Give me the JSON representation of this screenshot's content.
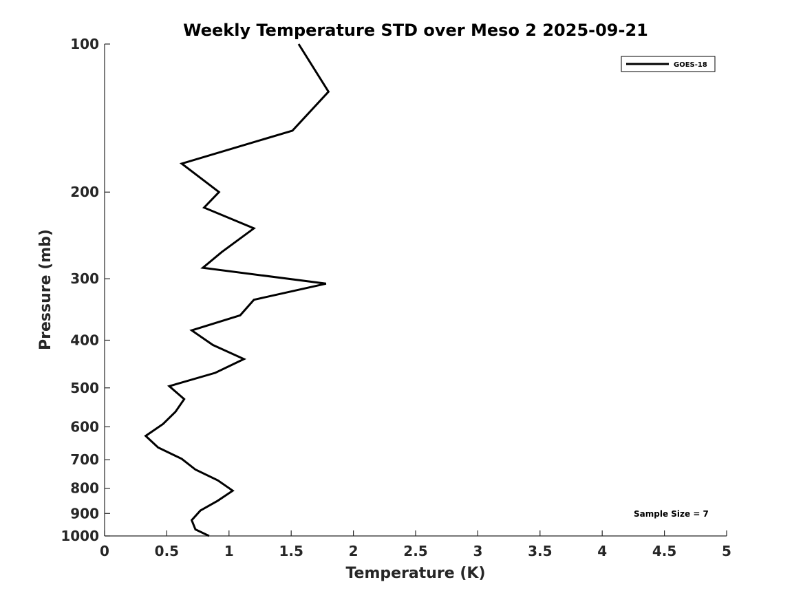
{
  "chart_data": {
    "type": "line",
    "title": "Weekly Temperature STD over Meso 2 2025-09-21",
    "xlabel": "Temperature (K)",
    "ylabel": "Pressure (mb)",
    "xlim": [
      0,
      5
    ],
    "ylim": [
      100,
      1000
    ],
    "y_scale": "log",
    "y_reversed": true,
    "x_ticks": [
      "0",
      "0.5",
      "1",
      "1.5",
      "2",
      "2.5",
      "3",
      "3.5",
      "4",
      "4.5",
      "5"
    ],
    "y_ticks": [
      "100",
      "200",
      "300",
      "400",
      "500",
      "600",
      "700",
      "800",
      "900",
      "1000"
    ],
    "grid": false,
    "legend_position": "top-right",
    "line_color": "#000000",
    "series": [
      {
        "name": "GOES-18",
        "points": [
          {
            "x": 1.56,
            "p": 100
          },
          {
            "x": 1.8,
            "p": 125
          },
          {
            "x": 1.51,
            "p": 150
          },
          {
            "x": 0.62,
            "p": 175
          },
          {
            "x": 0.92,
            "p": 200
          },
          {
            "x": 0.8,
            "p": 215
          },
          {
            "x": 1.2,
            "p": 237
          },
          {
            "x": 0.94,
            "p": 265
          },
          {
            "x": 0.79,
            "p": 285
          },
          {
            "x": 1.78,
            "p": 307
          },
          {
            "x": 1.2,
            "p": 331
          },
          {
            "x": 1.09,
            "p": 356
          },
          {
            "x": 0.7,
            "p": 382
          },
          {
            "x": 0.87,
            "p": 409
          },
          {
            "x": 1.12,
            "p": 437
          },
          {
            "x": 0.89,
            "p": 466
          },
          {
            "x": 0.52,
            "p": 496
          },
          {
            "x": 0.64,
            "p": 527
          },
          {
            "x": 0.57,
            "p": 559
          },
          {
            "x": 0.47,
            "p": 592
          },
          {
            "x": 0.33,
            "p": 626
          },
          {
            "x": 0.43,
            "p": 661
          },
          {
            "x": 0.62,
            "p": 697
          },
          {
            "x": 0.73,
            "p": 733
          },
          {
            "x": 0.91,
            "p": 771
          },
          {
            "x": 1.03,
            "p": 809
          },
          {
            "x": 0.91,
            "p": 848
          },
          {
            "x": 0.77,
            "p": 888
          },
          {
            "x": 0.7,
            "p": 929
          },
          {
            "x": 0.73,
            "p": 970
          },
          {
            "x": 0.84,
            "p": 1000
          }
        ]
      }
    ],
    "annotations": [
      "Sample Size = 7"
    ]
  }
}
